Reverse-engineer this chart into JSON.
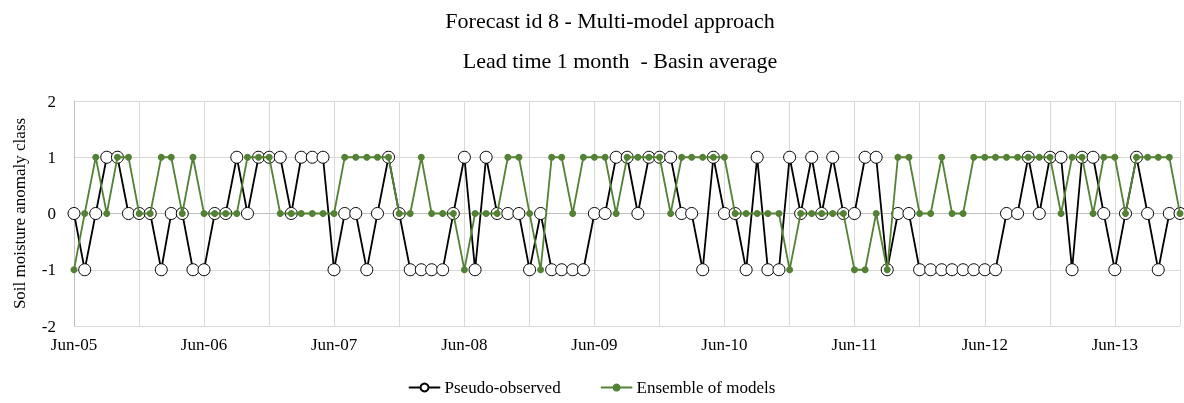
{
  "chart_data": {
    "type": "line",
    "title": "Forecast id 8 - Multi-model approach",
    "subtitle": "Lead time 1 month  - Basin average",
    "ylabel": "Soil moisture anomaly class",
    "x": [
      "2005-06",
      "2005-07",
      "2005-08",
      "2005-09",
      "2005-10",
      "2005-11",
      "2005-12",
      "2006-01",
      "2006-02",
      "2006-03",
      "2006-04",
      "2006-05",
      "2006-06",
      "2006-07",
      "2006-08",
      "2006-09",
      "2006-10",
      "2006-11",
      "2006-12",
      "2007-01",
      "2007-02",
      "2007-03",
      "2007-04",
      "2007-05",
      "2007-06",
      "2007-07",
      "2007-08",
      "2007-09",
      "2007-10",
      "2007-11",
      "2007-12",
      "2008-01",
      "2008-02",
      "2008-03",
      "2008-04",
      "2008-05",
      "2008-06",
      "2008-07",
      "2008-08",
      "2008-09",
      "2008-10",
      "2008-11",
      "2008-12",
      "2009-01",
      "2009-02",
      "2009-03",
      "2009-04",
      "2009-05",
      "2009-06",
      "2009-07",
      "2009-08",
      "2009-09",
      "2009-10",
      "2009-11",
      "2009-12",
      "2010-01",
      "2010-02",
      "2010-03",
      "2010-04",
      "2010-05",
      "2010-06",
      "2010-07",
      "2010-08",
      "2010-09",
      "2010-10",
      "2010-11",
      "2010-12",
      "2011-01",
      "2011-02",
      "2011-03",
      "2011-04",
      "2011-05",
      "2011-06",
      "2011-07",
      "2011-08",
      "2011-09",
      "2011-10",
      "2011-11",
      "2011-12",
      "2012-01",
      "2012-02",
      "2012-03",
      "2012-04",
      "2012-05",
      "2012-06",
      "2012-07",
      "2012-08",
      "2012-09",
      "2012-10",
      "2012-11",
      "2012-12",
      "2013-01",
      "2013-02",
      "2013-03",
      "2013-04",
      "2013-05",
      "2013-06",
      "2013-07",
      "2013-08",
      "2013-09",
      "2013-10",
      "2013-11",
      "2013-12"
    ],
    "series": [
      {
        "name": "Pseudo-observed",
        "color": "#000000",
        "marker": "circle",
        "values": [
          0,
          -1,
          0,
          1,
          1,
          0,
          0,
          0,
          -1,
          0,
          0,
          -1,
          -1,
          0,
          0,
          1,
          0,
          1,
          1,
          1,
          0,
          1,
          1,
          1,
          -1,
          0,
          0,
          -1,
          0,
          1,
          0,
          -1,
          -1,
          -1,
          -1,
          0,
          1,
          -1,
          1,
          0,
          0,
          0,
          -1,
          0,
          -1,
          -1,
          -1,
          -1,
          0,
          0,
          1,
          1,
          0,
          1,
          1,
          1,
          0,
          0,
          -1,
          1,
          0,
          0,
          -1,
          1,
          -1,
          -1,
          1,
          0,
          1,
          0,
          1,
          0,
          0,
          1,
          1,
          -1,
          0,
          0,
          -1,
          -1,
          -1,
          -1,
          -1,
          -1,
          -1,
          -1,
          0,
          0,
          1,
          0,
          1,
          1,
          -1,
          1,
          1,
          0,
          -1,
          0,
          1,
          0,
          -1,
          0,
          0
        ]
      },
      {
        "name": "Ensemble of models",
        "color": "#548235",
        "marker": "circle",
        "values": [
          -1,
          0,
          1,
          0,
          1,
          1,
          0,
          0,
          1,
          1,
          0,
          1,
          0,
          0,
          0,
          0,
          1,
          1,
          1,
          0,
          0,
          0,
          0,
          0,
          0,
          1,
          1,
          1,
          1,
          1,
          0,
          0,
          1,
          0,
          0,
          0,
          -1,
          0,
          0,
          0,
          1,
          1,
          0,
          -1,
          1,
          1,
          0,
          1,
          1,
          1,
          0,
          1,
          1,
          1,
          1,
          0,
          1,
          1,
          1,
          1,
          1,
          0,
          0,
          0,
          0,
          0,
          -1,
          0,
          0,
          0,
          0,
          0,
          -1,
          -1,
          0,
          -1,
          1,
          1,
          0,
          0,
          1,
          0,
          0,
          1,
          1,
          1,
          1,
          1,
          1,
          1,
          1,
          0,
          1,
          1,
          0,
          1,
          1,
          0,
          1,
          1,
          1,
          1,
          0
        ]
      }
    ],
    "xlim": [
      "2005-06",
      "2013-12"
    ],
    "xticks": [
      {
        "value": "2005-06",
        "label": "Jun-05"
      },
      {
        "value": "2005-12",
        "label": null
      },
      {
        "value": "2006-06",
        "label": "Jun-06"
      },
      {
        "value": "2006-12",
        "label": null
      },
      {
        "value": "2007-06",
        "label": "Jun-07"
      },
      {
        "value": "2007-12",
        "label": null
      },
      {
        "value": "2008-06",
        "label": "Jun-08"
      },
      {
        "value": "2008-12",
        "label": null
      },
      {
        "value": "2009-06",
        "label": "Jun-09"
      },
      {
        "value": "2009-12",
        "label": null
      },
      {
        "value": "2010-06",
        "label": "Jun-10"
      },
      {
        "value": "2010-12",
        "label": null
      },
      {
        "value": "2011-06",
        "label": "Jun-11"
      },
      {
        "value": "2011-12",
        "label": null
      },
      {
        "value": "2012-06",
        "label": "Jun-12"
      },
      {
        "value": "2012-12",
        "label": null
      },
      {
        "value": "2013-06",
        "label": "Jun-13"
      },
      {
        "value": "2013-12",
        "label": null
      }
    ],
    "ylim": [
      -2,
      2
    ],
    "yticks": [
      -2,
      -1,
      0,
      1,
      2
    ],
    "grid": true,
    "legend": "bottom",
    "line_style": "solid"
  }
}
